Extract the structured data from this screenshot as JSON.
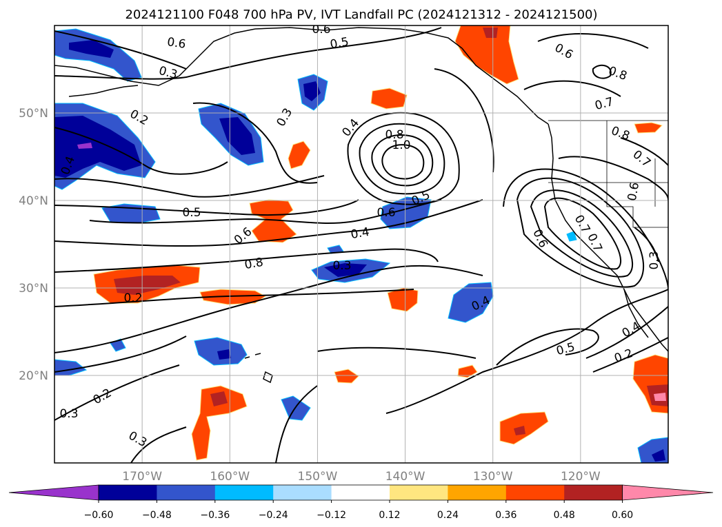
{
  "title": "2024121100 F048 700 hPa PV, IVT Landfall PC (2024121312 - 2024121500)",
  "map": {
    "lon_range": [
      -180,
      -110
    ],
    "lat_range": [
      10,
      60
    ],
    "lon_ticks": [
      {
        "value": -170,
        "label": "170°W"
      },
      {
        "value": -160,
        "label": "160°W"
      },
      {
        "value": -150,
        "label": "150°W"
      },
      {
        "value": -140,
        "label": "140°W"
      },
      {
        "value": -130,
        "label": "130°W"
      },
      {
        "value": -120,
        "label": "120°W"
      }
    ],
    "lat_ticks": [
      {
        "value": 20,
        "label": "20°N"
      },
      {
        "value": 30,
        "label": "30°N"
      },
      {
        "value": 40,
        "label": "40°N"
      },
      {
        "value": 50,
        "label": "50°N"
      }
    ],
    "grid": true
  },
  "colorbar": {
    "colors": [
      "#9933cc",
      "#000099",
      "#3355cc",
      "#00bbff",
      "#aaddff",
      "#ffffff",
      "#ffe680",
      "#ffa500",
      "#ff4500",
      "#b22222",
      "#ff88aa"
    ],
    "tick_labels": [
      "−0.60",
      "−0.48",
      "−0.36",
      "−0.24",
      "−0.12",
      "0.12",
      "0.24",
      "0.36",
      "0.48",
      "0.60"
    ]
  },
  "contour_labels": [
    "0.6",
    "0.5",
    "0.6",
    "0.3",
    "0.2",
    "0.4",
    "0.3",
    "0.4",
    "0.8",
    "1.0",
    "0.6",
    "0.8",
    "0.7",
    "0.8",
    "0.7",
    "0.5",
    "0.6",
    "0.5",
    "0.6",
    "0.6",
    "0.7",
    "0.4",
    "0.6",
    "0.7",
    "0.8",
    "0.3",
    "0.3",
    "0.2",
    "0.2",
    "0.4",
    "0.4",
    "0.5",
    "0.2",
    "0.3",
    "0.3"
  ],
  "colors": {
    "contour": "#000000",
    "coast": "#000000",
    "grid": "#b0b0b0"
  }
}
